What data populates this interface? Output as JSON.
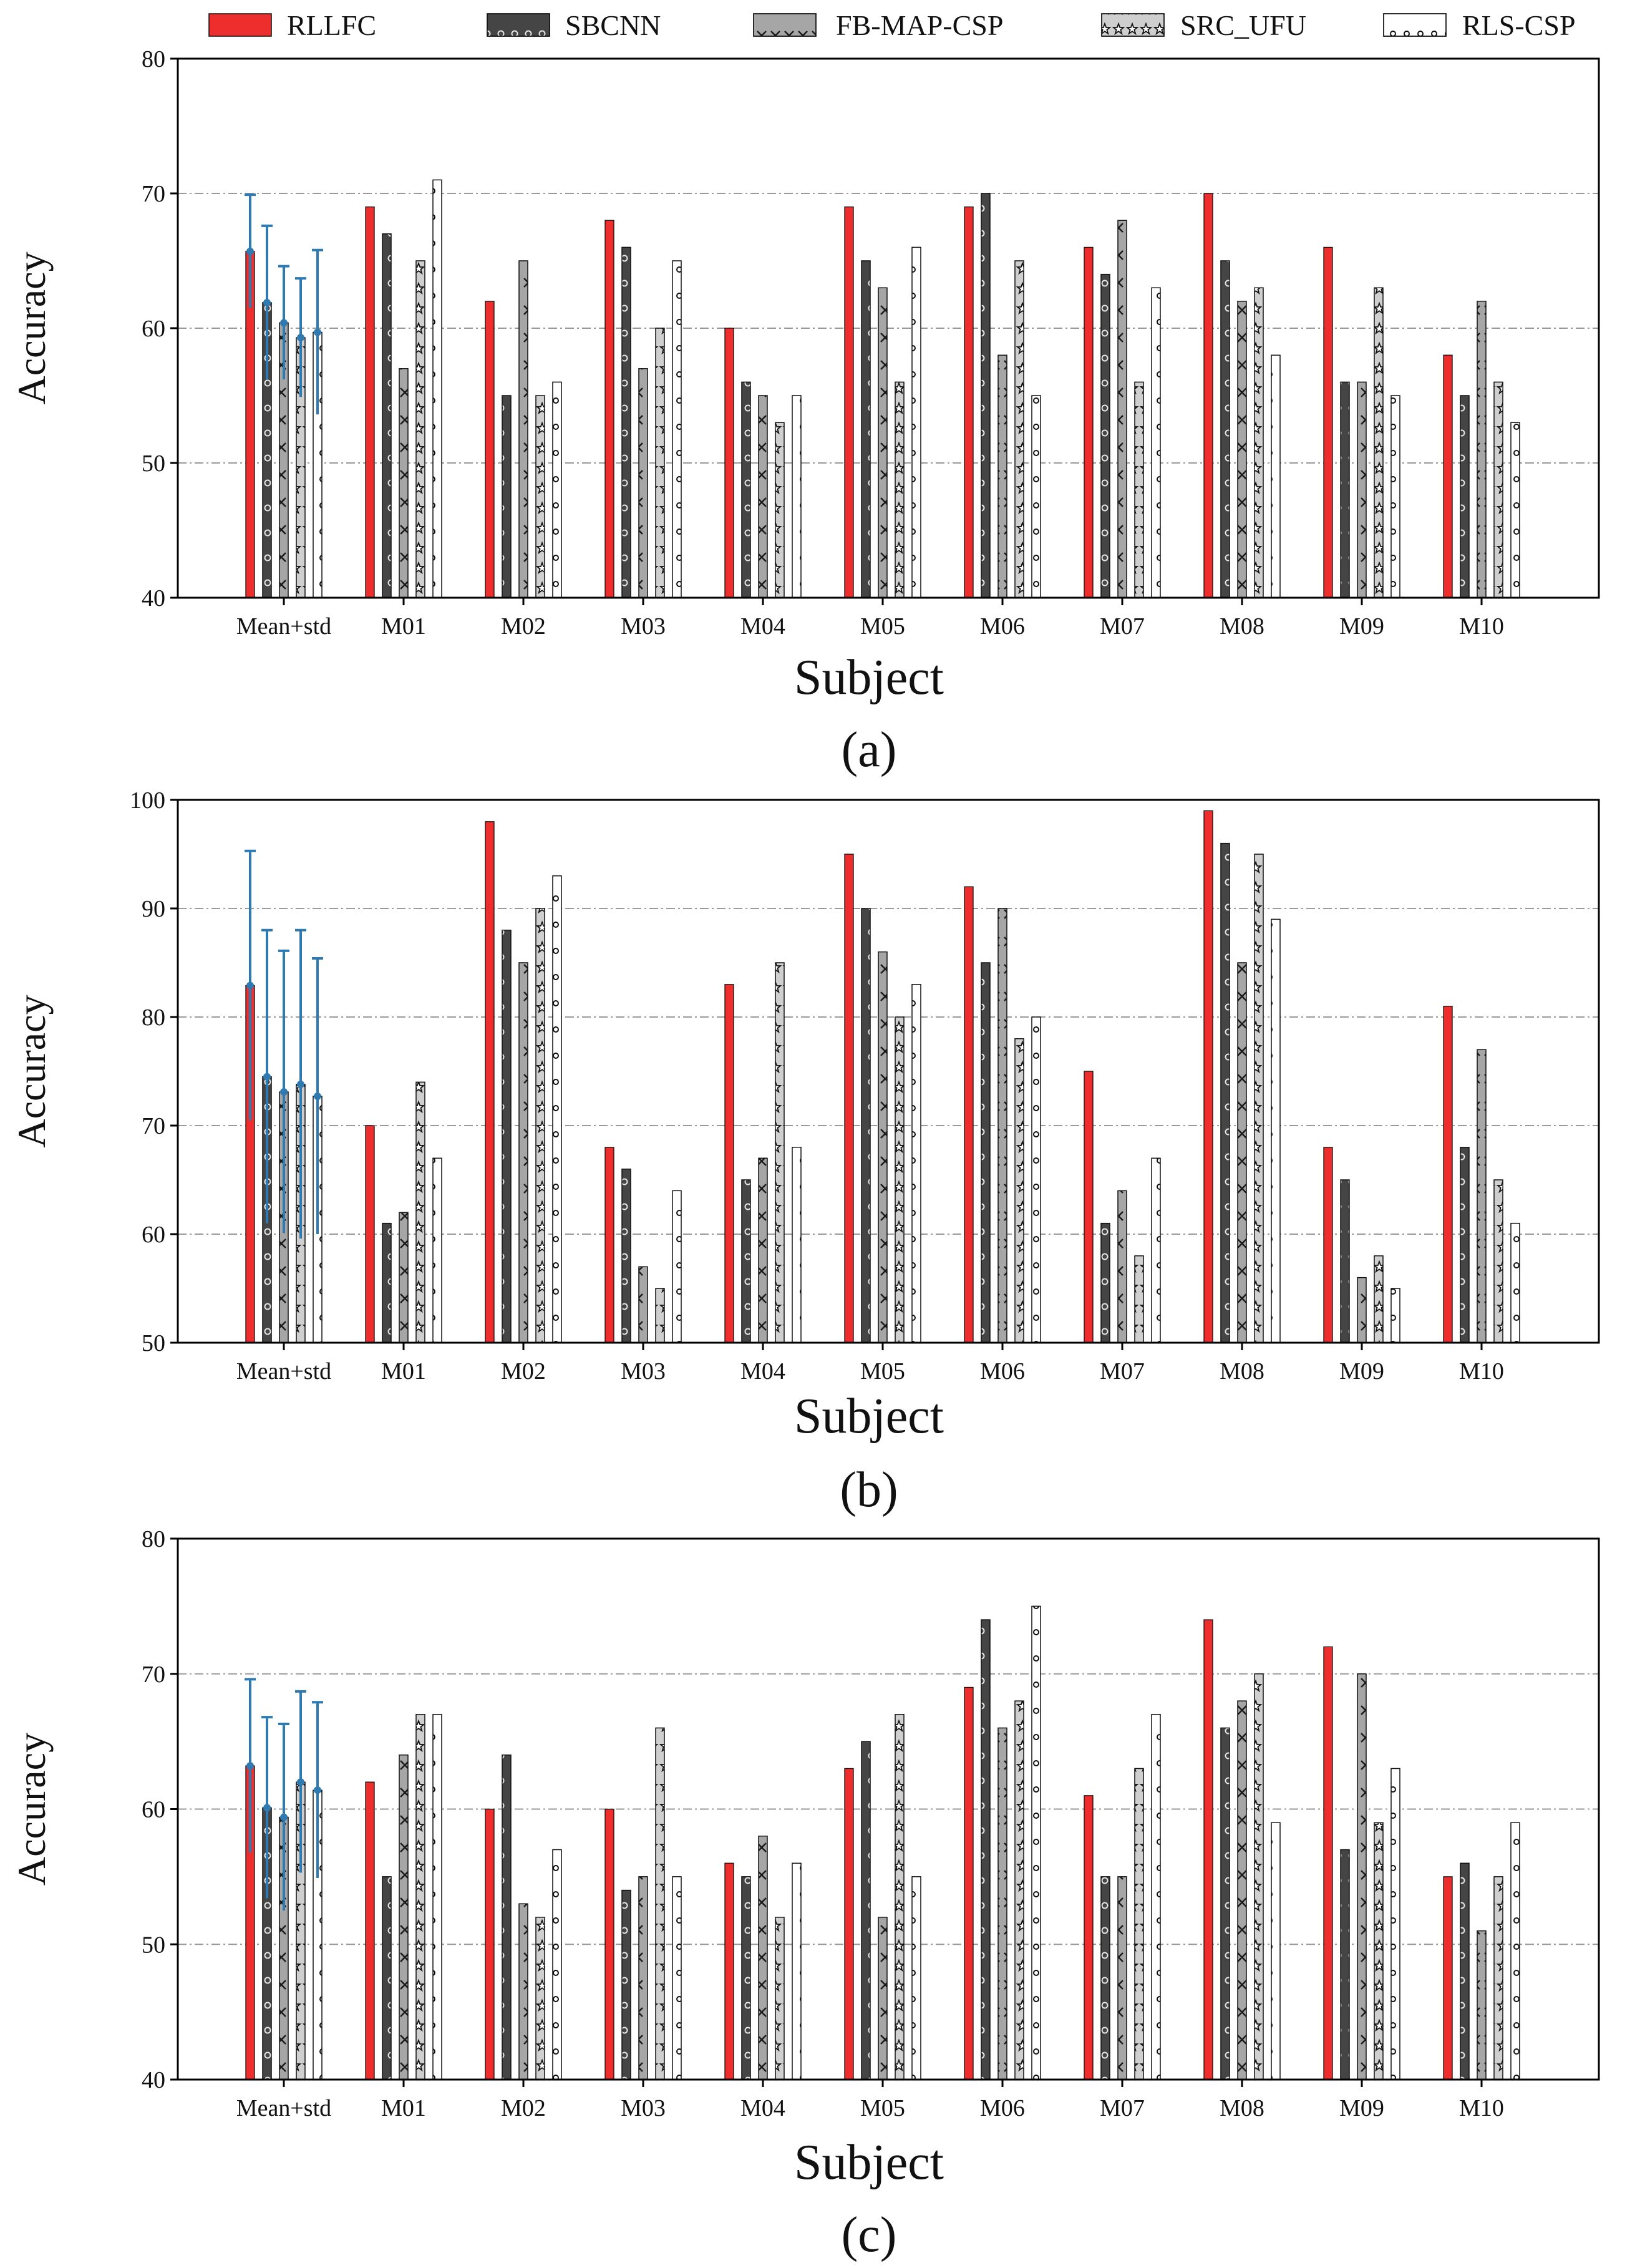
{
  "legend": [
    {
      "name": "RLLFC",
      "fill": "#ee2d2d",
      "pattern": "solid"
    },
    {
      "name": "SBCNN",
      "fill": "#454545",
      "pattern": "circles"
    },
    {
      "name": "FB-MAP-CSP",
      "fill": "#a6a6a6",
      "pattern": "cross"
    },
    {
      "name": "SRC_UFU",
      "fill": "#cfcfcf",
      "pattern": "stars"
    },
    {
      "name": "RLS-CSP",
      "fill": "#ffffff",
      "pattern": "dots"
    }
  ],
  "colors": {
    "errorbar": "#2f7bb1",
    "grid": "#9a9a9a",
    "axis": "#000000"
  },
  "chart_data": [
    {
      "type": "bar",
      "panel_label": "(a)",
      "xlabel": "Subject",
      "ylabel": "Accuracy",
      "ylim": [
        40,
        80
      ],
      "yticks": [
        40,
        50,
        60,
        70,
        80
      ],
      "grid": "horizontal dash-dot",
      "categories": [
        "Mean+std",
        "M01",
        "M02",
        "M03",
        "M04",
        "M05",
        "M06",
        "M07",
        "M08",
        "M09",
        "M10"
      ],
      "series": [
        {
          "name": "RLLFC",
          "values": [
            65.7,
            69,
            62,
            68,
            60,
            69,
            69,
            66,
            70,
            66,
            58
          ],
          "std": 4.2
        },
        {
          "name": "SBCNN",
          "values": [
            61.9,
            67,
            55,
            66,
            56,
            65,
            70,
            64,
            65,
            56,
            55
          ],
          "std": 5.7
        },
        {
          "name": "FB-MAP-CSP",
          "values": [
            60.4,
            57,
            65,
            57,
            55,
            63,
            58,
            68,
            62,
            56,
            62
          ],
          "std": 4.2
        },
        {
          "name": "SRC_UFU",
          "values": [
            59.3,
            65,
            55,
            60,
            53,
            56,
            65,
            56,
            63,
            63,
            56
          ],
          "std": 4.4
        },
        {
          "name": "RLS-CSP",
          "values": [
            59.7,
            71,
            56,
            65,
            55,
            66,
            55,
            63,
            58,
            55,
            53
          ],
          "std": 6.1
        }
      ]
    },
    {
      "type": "bar",
      "panel_label": "(b)",
      "xlabel": "Subject",
      "ylabel": "Accuracy",
      "ylim": [
        50,
        100
      ],
      "yticks": [
        50,
        60,
        70,
        80,
        90,
        100
      ],
      "grid": "horizontal dash-dot",
      "categories": [
        "Mean+std",
        "M01",
        "M02",
        "M03",
        "M04",
        "M05",
        "M06",
        "M07",
        "M08",
        "M09",
        "M10"
      ],
      "series": [
        {
          "name": "RLLFC",
          "values": [
            82.9,
            70,
            98,
            68,
            83,
            95,
            92,
            75,
            99,
            68,
            81
          ],
          "std": 12.4
        },
        {
          "name": "SBCNN",
          "values": [
            74.5,
            61,
            88,
            66,
            65,
            90,
            85,
            61,
            96,
            65,
            68
          ],
          "std": 13.5
        },
        {
          "name": "FB-MAP-CSP",
          "values": [
            73.1,
            62,
            85,
            57,
            67,
            86,
            90,
            64,
            85,
            56,
            77
          ],
          "std": 13.0
        },
        {
          "name": "SRC_UFU",
          "values": [
            73.8,
            74,
            90,
            55,
            85,
            80,
            78,
            58,
            95,
            58,
            65
          ],
          "std": 14.2
        },
        {
          "name": "RLS-CSP",
          "values": [
            72.7,
            67,
            93,
            64,
            68,
            83,
            80,
            67,
            89,
            55,
            61
          ],
          "std": 12.7
        }
      ]
    },
    {
      "type": "bar",
      "panel_label": "(c)",
      "xlabel": "Subject",
      "ylabel": "Accuracy",
      "ylim": [
        40,
        80
      ],
      "yticks": [
        40,
        50,
        60,
        70,
        80
      ],
      "grid": "horizontal dash-dot",
      "categories": [
        "Mean+std",
        "M01",
        "M02",
        "M03",
        "M04",
        "M05",
        "M06",
        "M07",
        "M08",
        "M09",
        "M10"
      ],
      "series": [
        {
          "name": "RLLFC",
          "values": [
            63.2,
            62,
            60,
            60,
            56,
            63,
            69,
            61,
            74,
            72,
            55
          ],
          "std": 6.4
        },
        {
          "name": "SBCNN",
          "values": [
            60.1,
            55,
            64,
            54,
            55,
            65,
            74,
            55,
            66,
            57,
            56
          ],
          "std": 6.7
        },
        {
          "name": "FB-MAP-CSP",
          "values": [
            59.4,
            64,
            53,
            55,
            58,
            52,
            66,
            55,
            68,
            70,
            51
          ],
          "std": 6.9
        },
        {
          "name": "SRC_UFU",
          "values": [
            62.0,
            67,
            52,
            66,
            52,
            67,
            68,
            63,
            70,
            59,
            55
          ],
          "std": 6.7
        },
        {
          "name": "RLS-CSP",
          "values": [
            61.4,
            67,
            57,
            55,
            56,
            55,
            75,
            67,
            59,
            63,
            59
          ],
          "std": 6.5
        }
      ]
    }
  ]
}
